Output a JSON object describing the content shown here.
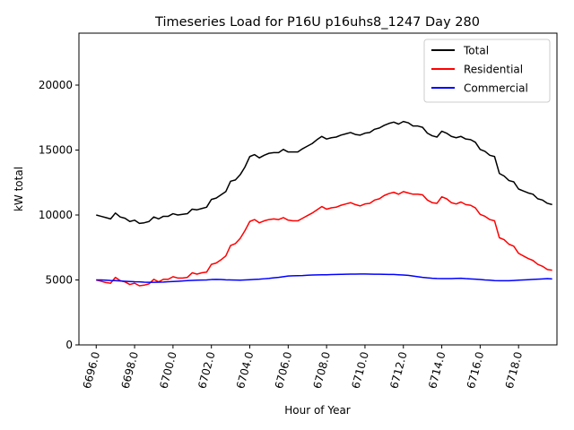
{
  "chart_data": {
    "type": "line",
    "title": "Timeseries Load for P16U p16uhs8_1247  Day 280",
    "xlabel": "Hour of Year",
    "ylabel": "kW total",
    "xlim": [
      6695.1,
      6720.0
    ],
    "ylim": [
      0,
      24000
    ],
    "x_ticks": [
      6696,
      6698,
      6700,
      6702,
      6704,
      6706,
      6708,
      6710,
      6712,
      6714,
      6716,
      6718
    ],
    "x_tick_labels": [
      "6696.0",
      "6698.0",
      "6700.0",
      "6702.0",
      "6704.0",
      "6706.0",
      "6708.0",
      "6710.0",
      "6712.0",
      "6714.0",
      "6716.0",
      "6718.0"
    ],
    "y_ticks": [
      0,
      5000,
      10000,
      15000,
      20000
    ],
    "y_tick_labels": [
      "0",
      "5000",
      "10000",
      "15000",
      "20000"
    ],
    "legend_position": "top-right",
    "x_start": 6696,
    "x_step": 0.25,
    "series": [
      {
        "name": "Total",
        "color": "#000000",
        "values": [
          10000,
          9900,
          9800,
          9700,
          10150,
          9850,
          9750,
          9500,
          9600,
          9350,
          9400,
          9500,
          9850,
          9700,
          9900,
          9900,
          10100,
          10000,
          10050,
          10100,
          10450,
          10400,
          10500,
          10600,
          11200,
          11300,
          11550,
          11800,
          12600,
          12700,
          13100,
          13700,
          14500,
          14650,
          14400,
          14600,
          14750,
          14800,
          14800,
          15050,
          14850,
          14850,
          14850,
          15100,
          15300,
          15500,
          15800,
          16050,
          15850,
          15950,
          16000,
          16150,
          16250,
          16350,
          16200,
          16150,
          16300,
          16350,
          16600,
          16700,
          16900,
          17050,
          17150,
          17000,
          17200,
          17100,
          16850,
          16850,
          16750,
          16300,
          16100,
          16000,
          16450,
          16300,
          16050,
          15950,
          16050,
          15850,
          15800,
          15600,
          15050,
          14900,
          14600,
          14500,
          13200,
          13000,
          12650,
          12550,
          12000,
          11850,
          11700,
          11600,
          11250,
          11150,
          10900,
          10800
        ]
      },
      {
        "name": "Residential",
        "color": "#ff0000",
        "values": [
          5000,
          4900,
          4800,
          4750,
          5200,
          4950,
          4850,
          4650,
          4750,
          4550,
          4600,
          4700,
          5050,
          4850,
          5050,
          5050,
          5250,
          5150,
          5150,
          5200,
          5550,
          5450,
          5550,
          5600,
          6200,
          6300,
          6550,
          6850,
          7650,
          7800,
          8200,
          8800,
          9500,
          9650,
          9400,
          9550,
          9650,
          9700,
          9650,
          9800,
          9600,
          9550,
          9550,
          9750,
          9950,
          10150,
          10400,
          10650,
          10450,
          10550,
          10600,
          10750,
          10850,
          10950,
          10800,
          10700,
          10850,
          10900,
          11150,
          11250,
          11500,
          11650,
          11750,
          11600,
          11800,
          11700,
          11600,
          11600,
          11550,
          11150,
          10950,
          10900,
          11400,
          11250,
          10950,
          10850,
          11000,
          10800,
          10750,
          10550,
          10050,
          9900,
          9650,
          9550,
          8250,
          8100,
          7750,
          7600,
          7050,
          6850,
          6650,
          6500,
          6200,
          6050,
          5800,
          5750
        ]
      },
      {
        "name": "Commercial",
        "color": "#0000ff",
        "values": [
          5000,
          5000,
          4980,
          4960,
          4950,
          4920,
          4900,
          4880,
          4860,
          4850,
          4830,
          4820,
          4820,
          4830,
          4840,
          4860,
          4880,
          4900,
          4920,
          4950,
          4970,
          4980,
          4990,
          5000,
          5030,
          5040,
          5030,
          5010,
          5000,
          4990,
          4980,
          5000,
          5020,
          5040,
          5060,
          5090,
          5120,
          5160,
          5200,
          5250,
          5300,
          5320,
          5330,
          5340,
          5360,
          5380,
          5390,
          5400,
          5400,
          5410,
          5420,
          5430,
          5440,
          5450,
          5450,
          5460,
          5460,
          5450,
          5440,
          5440,
          5430,
          5420,
          5420,
          5400,
          5380,
          5350,
          5300,
          5250,
          5200,
          5160,
          5130,
          5110,
          5100,
          5100,
          5100,
          5120,
          5130,
          5100,
          5080,
          5060,
          5030,
          5000,
          4980,
          4950,
          4940,
          4940,
          4940,
          4960,
          4980,
          5000,
          5020,
          5040,
          5060,
          5080,
          5100,
          5080
        ]
      }
    ]
  }
}
